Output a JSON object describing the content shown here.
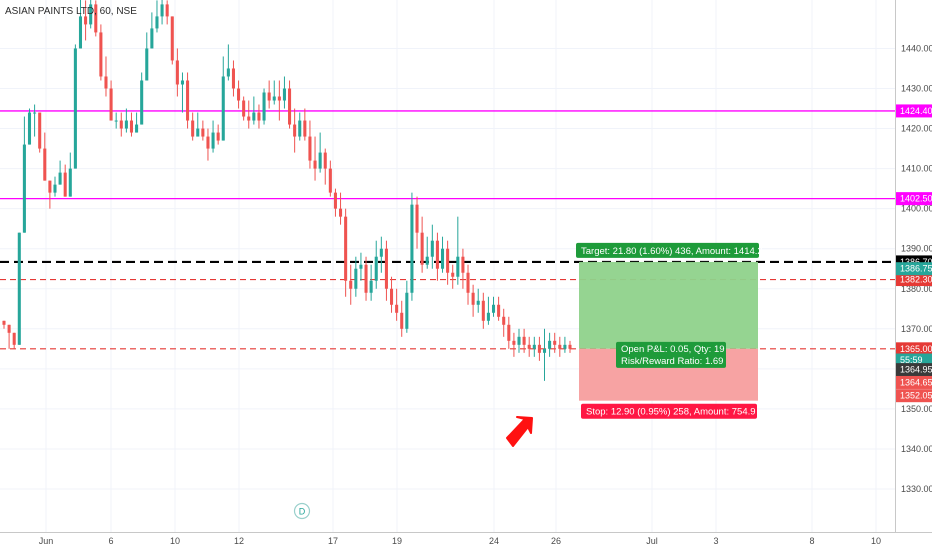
{
  "header": {
    "symbol": "ASIAN PAINTS LTD, 60, NSE"
  },
  "chart_data": {
    "type": "candlestick",
    "ylim": [
      1320,
      1450
    ],
    "yticks": [
      "1330.00",
      "1340.00",
      "1350.00",
      "1360.00",
      "1370.00",
      "1380.00",
      "1390.00",
      "1400.00",
      "1410.00",
      "1420.00",
      "1430.00",
      "1440.00"
    ],
    "xticks": [
      "Jun",
      "6",
      "10",
      "12",
      "17",
      "19",
      "24",
      "26",
      "Jul",
      "3",
      "8",
      "10"
    ],
    "colors": {
      "up": "#26a69a",
      "down": "#ef5350",
      "magenta": "#ff00ff",
      "dashed_red": "#e53935",
      "target": "#1e9b3a",
      "stop": "#ff1744"
    },
    "candles": [
      [
        1372,
        1371,
        1372,
        1370
      ],
      [
        1371,
        1369,
        1371,
        1365
      ],
      [
        1369,
        1366,
        1369,
        1365
      ],
      [
        1366,
        1394,
        1394,
        1366
      ],
      [
        1394,
        1416,
        1423,
        1394
      ],
      [
        1416,
        1424,
        1425,
        1416
      ],
      [
        1424,
        1424,
        1426,
        1418
      ],
      [
        1424,
        1415,
        1424,
        1414
      ],
      [
        1415,
        1407,
        1419,
        1407
      ],
      [
        1407,
        1404,
        1407,
        1400
      ],
      [
        1404,
        1406,
        1408,
        1403
      ],
      [
        1406,
        1409,
        1412,
        1406
      ],
      [
        1409,
        1403,
        1411,
        1403
      ],
      [
        1403,
        1410,
        1414,
        1403
      ],
      [
        1410,
        1440,
        1441,
        1410
      ],
      [
        1440,
        1448,
        1455,
        1440
      ],
      [
        1448,
        1446,
        1452,
        1442
      ],
      [
        1446,
        1451,
        1453,
        1445
      ],
      [
        1451,
        1444,
        1452,
        1443
      ],
      [
        1444,
        1433,
        1446,
        1432
      ],
      [
        1433,
        1430,
        1438,
        1428
      ],
      [
        1430,
        1422,
        1432,
        1422
      ],
      [
        1422,
        1422,
        1424,
        1420
      ],
      [
        1422,
        1420,
        1424,
        1418
      ],
      [
        1420,
        1422,
        1425,
        1419
      ],
      [
        1422,
        1419,
        1424,
        1418
      ],
      [
        1419,
        1421,
        1424,
        1419
      ],
      [
        1421,
        1432,
        1434,
        1421
      ],
      [
        1432,
        1440,
        1444,
        1432
      ],
      [
        1440,
        1445,
        1449,
        1440
      ],
      [
        1445,
        1448,
        1452,
        1444
      ],
      [
        1448,
        1451,
        1453,
        1446
      ],
      [
        1451,
        1448,
        1452,
        1446
      ],
      [
        1448,
        1437,
        1448,
        1436
      ],
      [
        1437,
        1431,
        1440,
        1428
      ],
      [
        1431,
        1432,
        1434,
        1424
      ],
      [
        1432,
        1422,
        1434,
        1420
      ],
      [
        1422,
        1418,
        1424,
        1417
      ],
      [
        1418,
        1420,
        1424,
        1419
      ],
      [
        1420,
        1418,
        1422,
        1417
      ],
      [
        1418,
        1415,
        1420,
        1412
      ],
      [
        1415,
        1419,
        1422,
        1414
      ],
      [
        1419,
        1417,
        1421,
        1416
      ],
      [
        1417,
        1433,
        1438,
        1417
      ],
      [
        1433,
        1435,
        1441,
        1432
      ],
      [
        1435,
        1430,
        1437,
        1428
      ],
      [
        1430,
        1427,
        1432,
        1425
      ],
      [
        1427,
        1423,
        1428,
        1422
      ],
      [
        1423,
        1422,
        1427,
        1420
      ],
      [
        1422,
        1424,
        1428,
        1421
      ],
      [
        1424,
        1422,
        1426,
        1420
      ],
      [
        1422,
        1429,
        1430,
        1421
      ],
      [
        1429,
        1427,
        1432,
        1425
      ],
      [
        1427,
        1428,
        1432,
        1426
      ],
      [
        1428,
        1427,
        1432,
        1422
      ],
      [
        1427,
        1430,
        1433,
        1425
      ],
      [
        1430,
        1421,
        1432,
        1420
      ],
      [
        1421,
        1418,
        1425,
        1414
      ],
      [
        1418,
        1422,
        1424,
        1417
      ],
      [
        1422,
        1418,
        1425,
        1417
      ],
      [
        1418,
        1412,
        1422,
        1410
      ],
      [
        1412,
        1410,
        1418,
        1407
      ],
      [
        1410,
        1414,
        1419,
        1409
      ],
      [
        1414,
        1410,
        1415,
        1406
      ],
      [
        1410,
        1404,
        1412,
        1403
      ],
      [
        1404,
        1400,
        1405,
        1398
      ],
      [
        1400,
        1398,
        1404,
        1396
      ],
      [
        1398,
        1382,
        1400,
        1378
      ],
      [
        1382,
        1380,
        1386,
        1376
      ],
      [
        1380,
        1385,
        1388,
        1378
      ],
      [
        1385,
        1386,
        1389,
        1382
      ],
      [
        1386,
        1379,
        1388,
        1377
      ],
      [
        1379,
        1382,
        1386,
        1377
      ],
      [
        1382,
        1388,
        1392,
        1380
      ],
      [
        1388,
        1390,
        1393,
        1384
      ],
      [
        1390,
        1380,
        1392,
        1377
      ],
      [
        1380,
        1376,
        1383,
        1374
      ],
      [
        1376,
        1374,
        1380,
        1372
      ],
      [
        1374,
        1370,
        1377,
        1368
      ],
      [
        1370,
        1379,
        1382,
        1369
      ],
      [
        1379,
        1401,
        1404,
        1377
      ],
      [
        1401,
        1394,
        1403,
        1390
      ],
      [
        1394,
        1386,
        1398,
        1384
      ],
      [
        1386,
        1388,
        1393,
        1385
      ],
      [
        1388,
        1392,
        1396,
        1385
      ],
      [
        1392,
        1385,
        1394,
        1382
      ],
      [
        1385,
        1390,
        1393,
        1384
      ],
      [
        1390,
        1384,
        1392,
        1381
      ],
      [
        1384,
        1383,
        1386,
        1380
      ],
      [
        1383,
        1388,
        1398,
        1381
      ],
      [
        1388,
        1384,
        1390,
        1380
      ],
      [
        1384,
        1379,
        1386,
        1376
      ],
      [
        1379,
        1376,
        1381,
        1373
      ],
      [
        1376,
        1377,
        1380,
        1374
      ],
      [
        1377,
        1372,
        1379,
        1370
      ],
      [
        1372,
        1374,
        1378,
        1371
      ],
      [
        1374,
        1376,
        1378,
        1373
      ],
      [
        1376,
        1373,
        1378,
        1372
      ],
      [
        1373,
        1371,
        1375,
        1368
      ],
      [
        1371,
        1367,
        1373,
        1365
      ],
      [
        1367,
        1366,
        1369,
        1363
      ],
      [
        1366,
        1368,
        1370,
        1364
      ],
      [
        1368,
        1366,
        1370,
        1364
      ],
      [
        1366,
        1365,
        1368,
        1363
      ],
      [
        1365,
        1366,
        1368,
        1363
      ],
      [
        1366,
        1364,
        1368,
        1362
      ],
      [
        1364,
        1365,
        1370,
        1357
      ],
      [
        1365,
        1367,
        1369,
        1363
      ],
      [
        1367,
        1366,
        1369,
        1364
      ],
      [
        1366,
        1365,
        1368,
        1363
      ],
      [
        1365,
        1366,
        1368,
        1364
      ],
      [
        1366,
        1365,
        1367,
        1364
      ]
    ],
    "horizontal_lines": [
      {
        "name": "magenta-1424",
        "value": 1424.4,
        "label": "1424.40",
        "style": "solid",
        "color": "#ff00ff"
      },
      {
        "name": "magenta-1402",
        "value": 1402.5,
        "label": "1402.50",
        "style": "solid",
        "color": "#ff00ff"
      },
      {
        "name": "black-1386",
        "value": 1386.7,
        "label": "1386.70",
        "style": "dashed",
        "color": "#000000"
      },
      {
        "name": "red-1382",
        "value": 1382.3,
        "label": "1382.30",
        "style": "dashed",
        "color": "#e53935"
      },
      {
        "name": "red-1365",
        "value": 1365.0,
        "label": "1365.00",
        "style": "dashed",
        "color": "#e53935"
      }
    ],
    "price_labels": [
      {
        "name": "price-label-1386-75",
        "value": 1385.0,
        "label": "1386.75",
        "bg": "#26a69a",
        "fg": "#ffffff"
      },
      {
        "name": "price-label-55-59",
        "value": 1362.2,
        "label": "55:59",
        "bg": "#26a69a",
        "fg": "#ffffff"
      },
      {
        "name": "price-label-1364-95",
        "value": 1359.8,
        "label": "1364.95",
        "bg": "#3a3a3a",
        "fg": "#ffffff"
      },
      {
        "name": "price-label-1364-65",
        "value": 1356.6,
        "label": "1364.65",
        "bg": "#ef5350",
        "fg": "#ffffff"
      },
      {
        "name": "price-label-1352-05",
        "value": 1353.3,
        "label": "1352.05",
        "bg": "#ef5350",
        "fg": "#ffffff"
      }
    ],
    "position": {
      "entry": 1365.0,
      "target": 1386.7,
      "stop": 1352.05,
      "target_text": "Target: 21.80 (1.60%) 436, Amount: 1414.2",
      "stop_text": "Stop: 12.90 (0.95%) 258, Amount: 754.9",
      "pl_text": "Open P&L: 0.05, Qty: 19",
      "rr_text": "Risk/Reward Ratio: 1.69"
    },
    "dividend_marker": "D"
  }
}
